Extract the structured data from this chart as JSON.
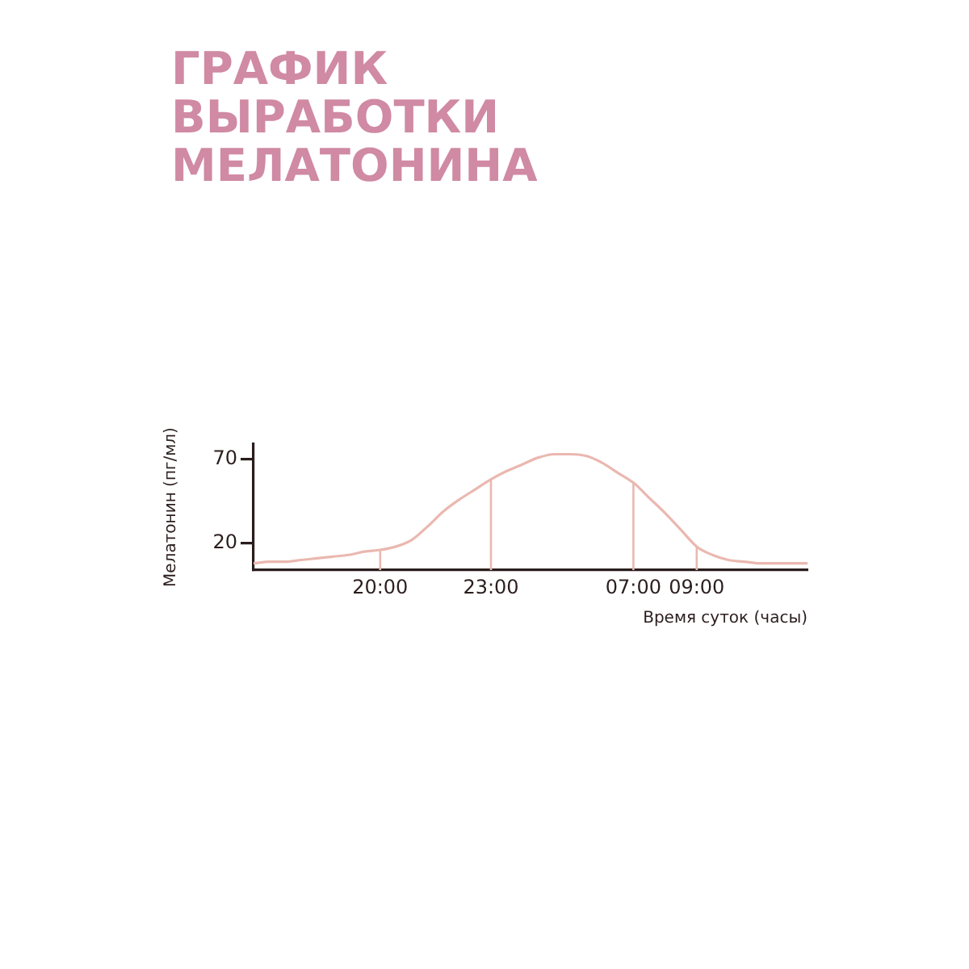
{
  "chart_data": {
    "type": "line",
    "title": "ГРАФИК\nВЫРАБОТКИ\nМЕЛАТОНИНА",
    "xlabel": "Время суток (часы)",
    "ylabel": "Мелатонин (пг/мл)",
    "categories": [
      null,
      null,
      null,
      null,
      null,
      null,
      null,
      null,
      "20:00",
      null,
      null,
      null,
      null,
      null,
      null,
      "23:00",
      null,
      null,
      null,
      null,
      null,
      null,
      null,
      null,
      "07:00",
      null,
      null,
      null,
      "09:00",
      null,
      null,
      null,
      null,
      null,
      null,
      null
    ],
    "series": [
      {
        "color": "#eab8b0",
        "values": [
          8,
          9,
          9,
          10,
          11,
          12,
          13,
          15,
          16,
          18,
          22,
          30,
          39,
          46,
          52,
          58,
          63,
          67,
          71,
          73,
          73,
          72,
          68,
          62,
          56,
          47,
          38,
          28,
          18,
          13,
          10,
          9,
          8,
          8,
          8,
          8
        ]
      }
    ],
    "ylim": [
      4,
      79
    ],
    "yticks": [
      20,
      70
    ],
    "grid": false,
    "legend": false,
    "marker": "none",
    "line_style": "solid"
  }
}
